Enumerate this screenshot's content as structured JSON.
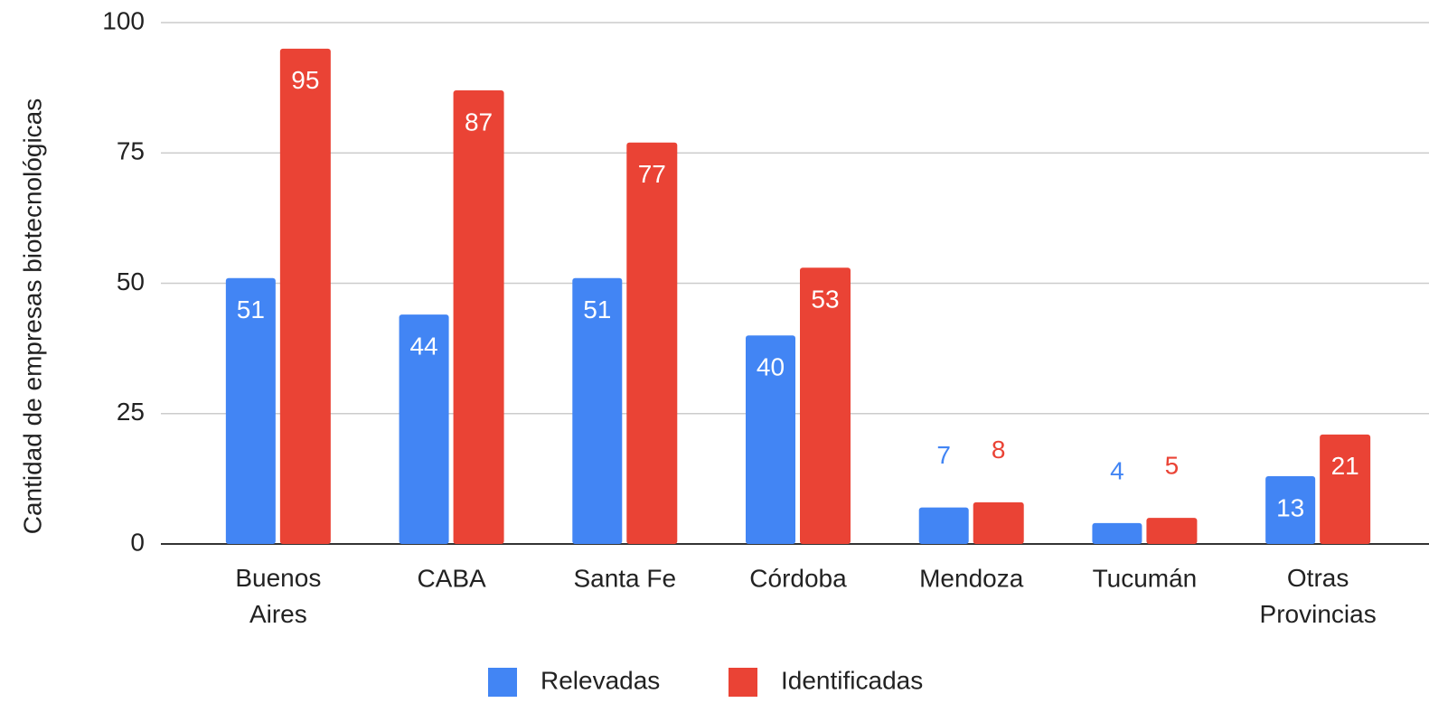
{
  "chart_data": {
    "type": "bar",
    "y_label": "Cantidad de empresas biotecnológicas",
    "categories": [
      "Buenos Aires",
      "CABA",
      "Santa Fe",
      "Córdoba",
      "Mendoza",
      "Tucumán",
      "Otras Provincias"
    ],
    "series": [
      {
        "name": "Relevadas",
        "color": "#4285f4",
        "values": [
          51,
          44,
          51,
          40,
          7,
          4,
          13
        ]
      },
      {
        "name": "Identificadas",
        "color": "#ea4335",
        "values": [
          95,
          87,
          77,
          53,
          8,
          5,
          21
        ]
      }
    ],
    "ylim": [
      0,
      100
    ],
    "yticks": [
      0,
      25,
      50,
      75,
      100
    ],
    "grid": true,
    "legend": "bottom"
  }
}
